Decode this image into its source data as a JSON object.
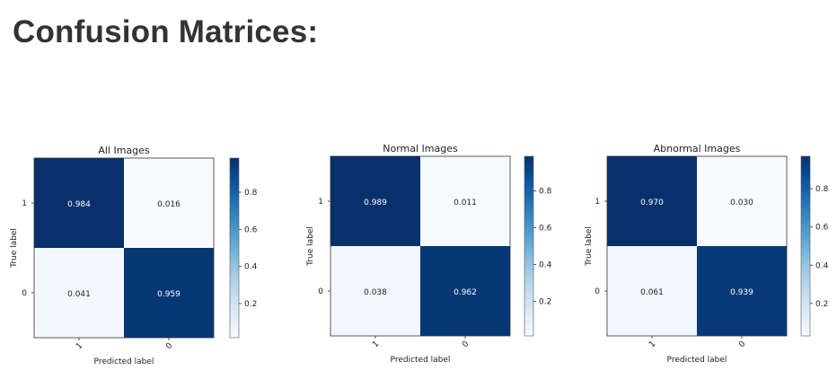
{
  "page": {
    "title": "Confusion Matrices:"
  },
  "chart_data": [
    {
      "type": "heatmap",
      "title": "All Images",
      "xlabel": "Predicted label",
      "ylabel": "True label",
      "x_ticks": [
        "1",
        "0"
      ],
      "y_ticks": [
        "1",
        "0"
      ],
      "values": [
        [
          0.984,
          0.016
        ],
        [
          0.041,
          0.959
        ]
      ],
      "labels": [
        [
          "0.984",
          "0.016"
        ],
        [
          "0.041",
          "0.959"
        ]
      ],
      "colorbar_ticks": [
        "0.2",
        "0.4",
        "0.6",
        "0.8"
      ],
      "colorbar_range": [
        0.016,
        0.984
      ],
      "colormap": "Blues"
    },
    {
      "type": "heatmap",
      "title": "Normal Images",
      "xlabel": "Predicted label",
      "ylabel": "True label",
      "x_ticks": [
        "1",
        "0"
      ],
      "y_ticks": [
        "1",
        "0"
      ],
      "values": [
        [
          0.989,
          0.011
        ],
        [
          0.038,
          0.962
        ]
      ],
      "labels": [
        [
          "0.989",
          "0.011"
        ],
        [
          "0.038",
          "0.962"
        ]
      ],
      "colorbar_ticks": [
        "0.2",
        "0.4",
        "0.6",
        "0.8"
      ],
      "colorbar_range": [
        0.011,
        0.989
      ],
      "colormap": "Blues"
    },
    {
      "type": "heatmap",
      "title": "Abnormal Images",
      "xlabel": "Predicted label",
      "ylabel": "True label",
      "x_ticks": [
        "1",
        "0"
      ],
      "y_ticks": [
        "1",
        "0"
      ],
      "values": [
        [
          0.97,
          0.03
        ],
        [
          0.061,
          0.939
        ]
      ],
      "labels": [
        [
          "0.970",
          "0.030"
        ],
        [
          "0.061",
          "0.939"
        ]
      ],
      "colorbar_ticks": [
        "0.2",
        "0.4",
        "0.6",
        "0.8"
      ],
      "colorbar_range": [
        0.03,
        0.97
      ],
      "colormap": "Blues"
    }
  ]
}
